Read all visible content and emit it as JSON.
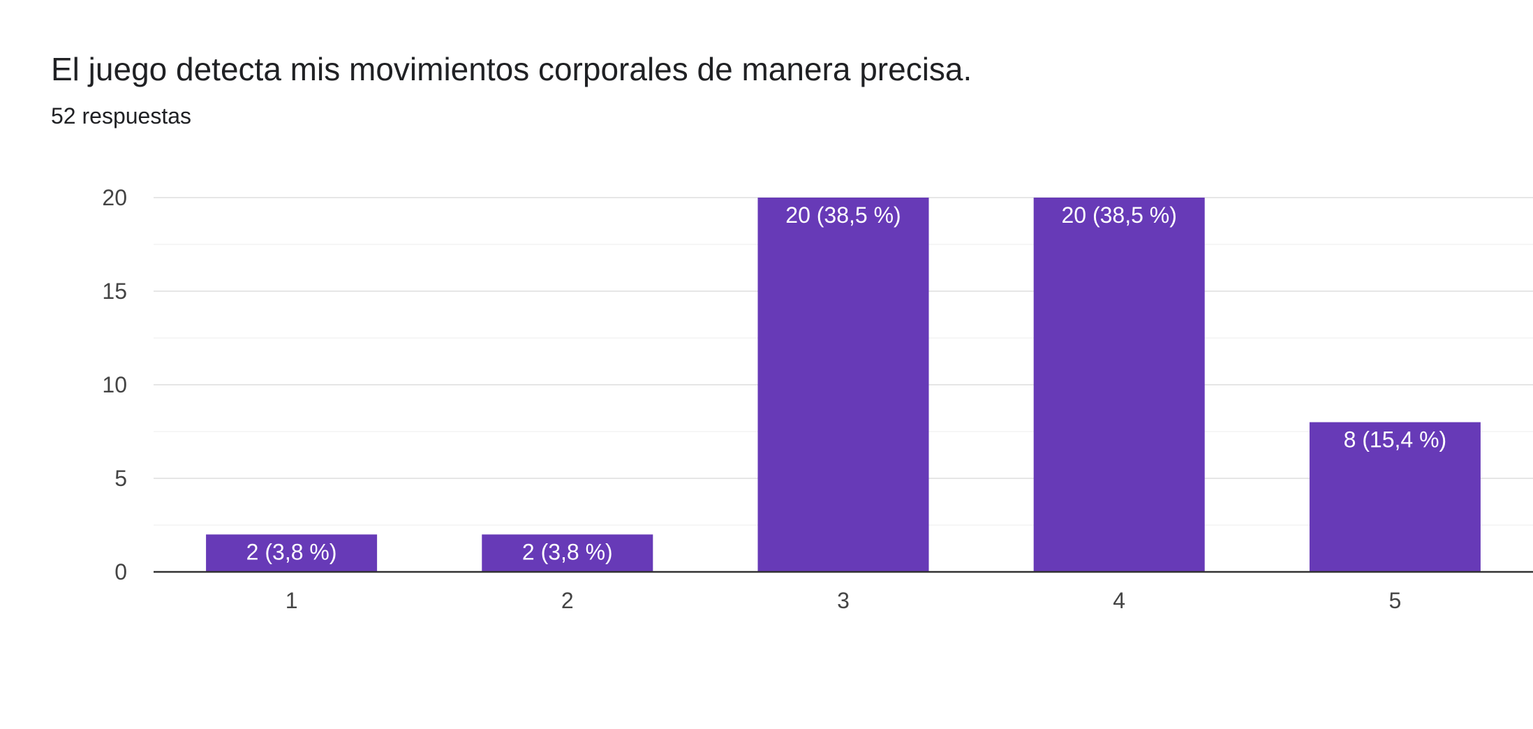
{
  "header": {
    "title": "El juego detecta mis movimientos corporales de manera precisa.",
    "responses": "52 respuestas"
  },
  "colors": {
    "bar": "#673AB7",
    "grid": "#EEEEEE",
    "axis": "#333333",
    "tick_text": "#444444"
  },
  "chart_data": {
    "type": "bar",
    "title": "El juego detecta mis movimientos corporales de manera precisa.",
    "subtitle": "52 respuestas",
    "categories": [
      "1",
      "2",
      "3",
      "4",
      "5"
    ],
    "values": [
      2,
      2,
      20,
      20,
      8
    ],
    "data_labels": [
      "2 (3,8 %)",
      "2 (3,8 %)",
      "20 (38,5 %)",
      "20 (38,5 %)",
      "8 (15,4 %)"
    ],
    "ylim": [
      0,
      20
    ],
    "yticks": [
      0,
      5,
      10,
      15,
      20
    ],
    "xlabel": "",
    "ylabel": "",
    "grid": true,
    "legend": "none"
  }
}
